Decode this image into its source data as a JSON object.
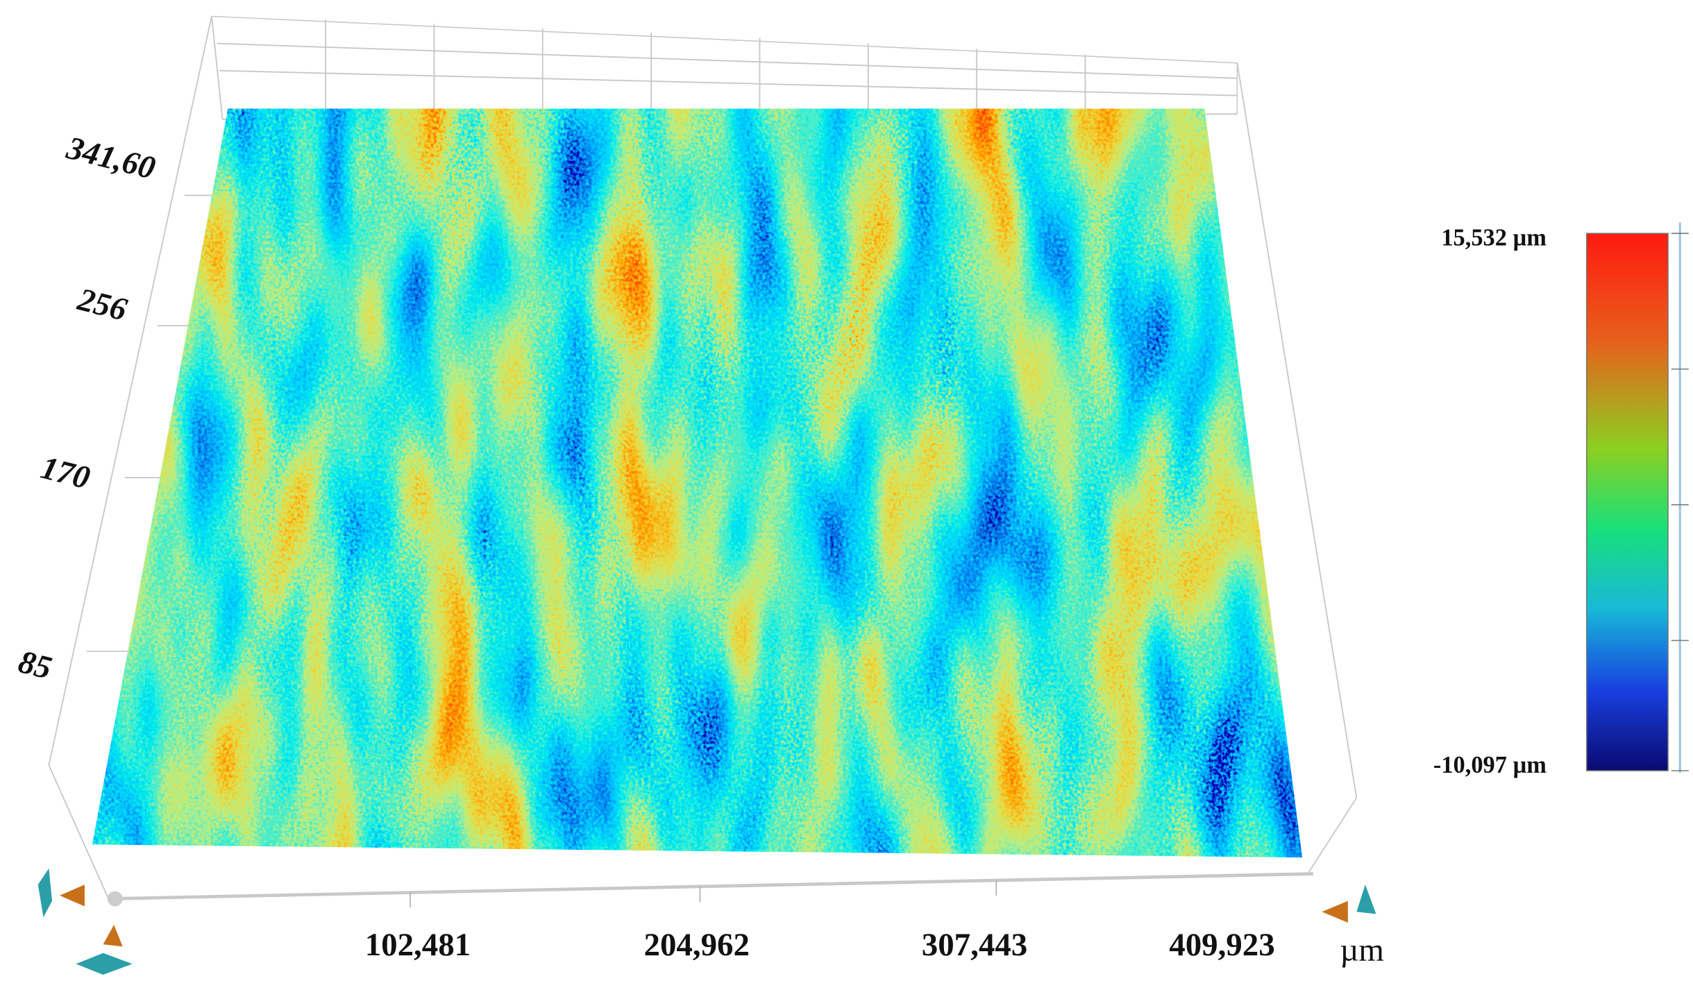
{
  "y_axis": {
    "ticks": [
      "341,60",
      "256",
      "170",
      "85"
    ]
  },
  "x_axis": {
    "ticks": [
      "102,481",
      "204,962",
      "307,443",
      "409,923"
    ],
    "unit": "µm"
  },
  "colorbar": {
    "max_label": "15,532 µm",
    "min_label": "-10,097 µm"
  }
}
